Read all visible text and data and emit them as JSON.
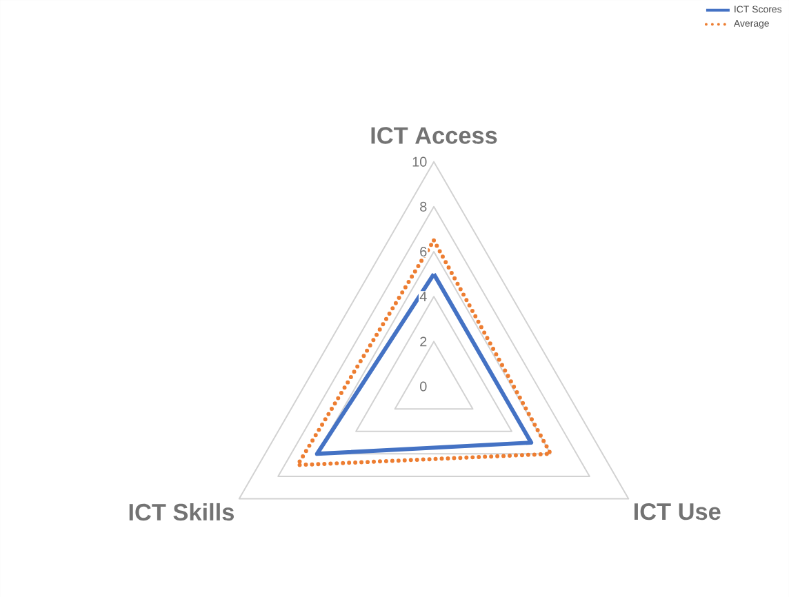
{
  "chart_data": {
    "type": "radar",
    "categories": [
      "ICT Access",
      "ICT Use",
      "ICT Skills"
    ],
    "series": [
      {
        "name": "ICT Scores",
        "color": "#4472c4",
        "values": [
          5,
          5,
          6
        ],
        "line_style": "solid"
      },
      {
        "name": "Average",
        "color": "#ed7d31",
        "values": [
          6.5,
          6,
          7
        ],
        "line_style": "dotted"
      }
    ],
    "ylim": [
      0,
      10
    ],
    "yticks": [
      0,
      2,
      4,
      6,
      8,
      10
    ],
    "grid": true,
    "legend": "top right"
  }
}
